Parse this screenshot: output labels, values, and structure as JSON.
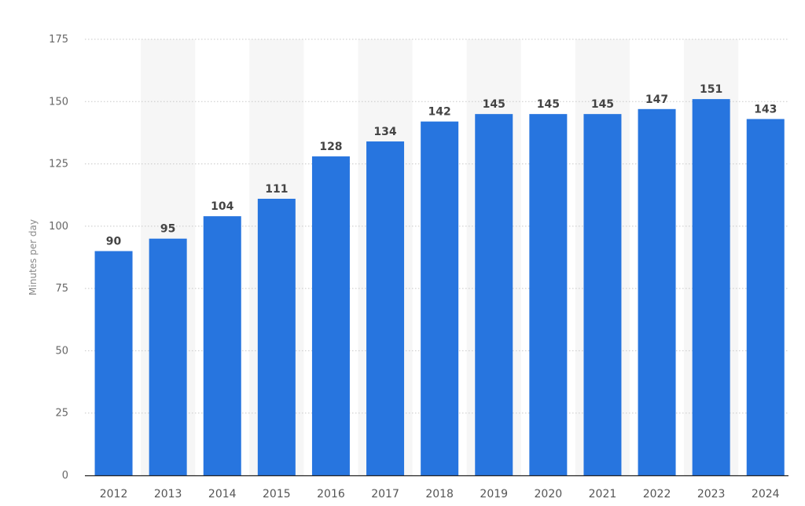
{
  "chart_data": {
    "type": "bar",
    "title": "",
    "xlabel": "",
    "ylabel": "Minutes per day",
    "categories": [
      "2012",
      "2013",
      "2014",
      "2015",
      "2016",
      "2017",
      "2018",
      "2019",
      "2020",
      "2021",
      "2022",
      "2023",
      "2024"
    ],
    "values": [
      90,
      95,
      104,
      111,
      128,
      134,
      142,
      145,
      145,
      145,
      147,
      151,
      143
    ],
    "ylim": [
      0,
      175
    ],
    "yticks": [
      0,
      25,
      50,
      75,
      100,
      125,
      150,
      175
    ],
    "grid": true,
    "legend": "none",
    "data_labels": true,
    "colors": {
      "bar": "#2775df",
      "grid": "#c8c8c8",
      "alternate_band": "#f6f6f6",
      "axis": "#222222"
    }
  }
}
